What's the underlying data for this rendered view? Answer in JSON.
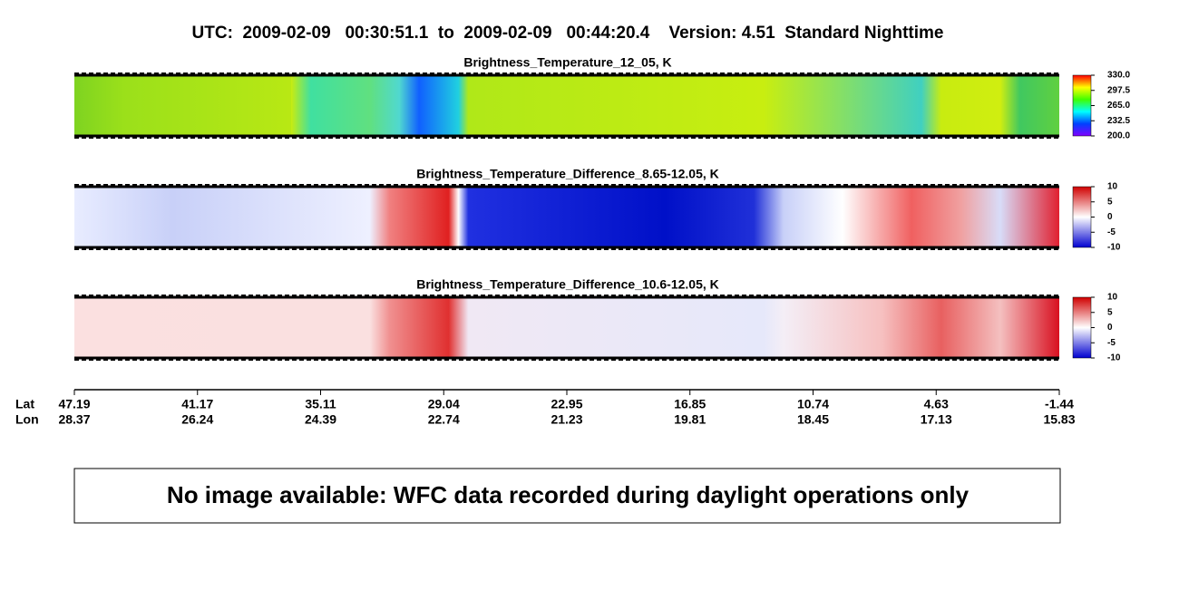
{
  "title": "UTC:  2009-02-09   00:30:51.1  to  2009-02-09   00:44:20.4    Version: 4.51  Standard Nighttime",
  "panels": [
    {
      "title": "Brightness_Temperature_12_05, K",
      "colorbar": {
        "lim": [
          200,
          330
        ],
        "ticks": [
          {
            "value": 200,
            "label": "200.0"
          },
          {
            "value": 232.5,
            "label": "232.5"
          },
          {
            "value": 265,
            "label": "265.0"
          },
          {
            "value": 297.5,
            "label": "297.5"
          },
          {
            "value": 330,
            "label": "330.0"
          }
        ]
      }
    },
    {
      "title": "Brightness_Temperature_Difference_8.65-12.05, K",
      "colorbar": {
        "lim": [
          -10,
          10
        ],
        "ticks": [
          -10,
          -5,
          0,
          5,
          10
        ]
      }
    },
    {
      "title": "Brightness_Temperature_Difference_10.6-12.05, K",
      "colorbar": {
        "lim": [
          -10,
          10
        ],
        "ticks": [
          -10,
          -5,
          0,
          5,
          10
        ]
      }
    }
  ],
  "x_axis": {
    "row_labels": [
      "Lat",
      "Lon"
    ],
    "lat": [
      47.19,
      41.17,
      35.11,
      29.04,
      22.95,
      16.85,
      10.74,
      4.63,
      -1.44
    ],
    "lon": [
      28.37,
      26.24,
      24.39,
      22.74,
      21.23,
      19.81,
      18.45,
      17.13,
      15.83
    ]
  },
  "message": "No image available: WFC data recorded during daylight operations only"
}
